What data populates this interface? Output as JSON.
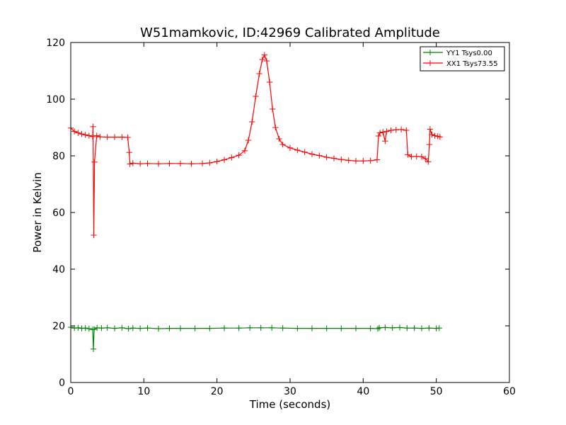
{
  "chart_data": {
    "type": "line",
    "title": "W51mamkovic, ID:42969 Calibrated Amplitude",
    "xlabel": "Time (seconds)",
    "ylabel": "Power in Kelvin",
    "xlim": [
      0,
      60
    ],
    "ylim": [
      0,
      120
    ],
    "x_ticks": [
      0,
      10,
      20,
      30,
      40,
      50,
      60
    ],
    "y_ticks": [
      0,
      20,
      40,
      60,
      80,
      100,
      120
    ],
    "grid": false,
    "legend_placement": "top-right",
    "series": [
      {
        "name": "YY1 Tsys0.00",
        "color": "#008000",
        "marker": "plus",
        "points": [
          [
            0.0,
            19.5
          ],
          [
            0.5,
            19.2
          ],
          [
            1.0,
            19.3
          ],
          [
            1.5,
            19.1
          ],
          [
            2.0,
            19.2
          ],
          [
            2.5,
            19.0
          ],
          [
            3.0,
            18.7
          ],
          [
            3.1,
            11.8
          ],
          [
            3.2,
            18.8
          ],
          [
            3.6,
            19.3
          ],
          [
            4.2,
            19.2
          ],
          [
            5.0,
            19.3
          ],
          [
            6.0,
            19.1
          ],
          [
            7.0,
            19.3
          ],
          [
            7.9,
            19.0
          ],
          [
            8.5,
            19.2
          ],
          [
            9.5,
            19.1
          ],
          [
            10.5,
            19.2
          ],
          [
            12.0,
            19.0
          ],
          [
            13.5,
            19.1
          ],
          [
            15.0,
            19.1
          ],
          [
            17.0,
            19.1
          ],
          [
            19.0,
            19.1
          ],
          [
            21.0,
            19.2
          ],
          [
            23.0,
            19.2
          ],
          [
            24.5,
            19.3
          ],
          [
            26.0,
            19.3
          ],
          [
            27.5,
            19.3
          ],
          [
            29.0,
            19.2
          ],
          [
            31.0,
            19.1
          ],
          [
            33.0,
            19.1
          ],
          [
            35.0,
            19.1
          ],
          [
            37.0,
            19.1
          ],
          [
            39.0,
            19.1
          ],
          [
            41.0,
            19.1
          ],
          [
            42.0,
            19.0
          ],
          [
            42.2,
            19.3
          ],
          [
            43.0,
            19.4
          ],
          [
            44.0,
            19.3
          ],
          [
            45.0,
            19.4
          ],
          [
            46.0,
            19.2
          ],
          [
            47.0,
            19.2
          ],
          [
            48.0,
            19.1
          ],
          [
            49.0,
            19.2
          ],
          [
            50.0,
            19.1
          ],
          [
            50.4,
            19.2
          ]
        ]
      },
      {
        "name": "XX1 Tsys73.55",
        "color": "#ff0000",
        "marker": "plus",
        "points": [
          [
            0.0,
            89.8
          ],
          [
            0.5,
            88.6
          ],
          [
            1.0,
            88.1
          ],
          [
            1.5,
            87.7
          ],
          [
            2.0,
            87.4
          ],
          [
            2.5,
            87.1
          ],
          [
            3.0,
            86.8
          ],
          [
            3.05,
            90.3
          ],
          [
            3.15,
            52.0
          ],
          [
            3.25,
            77.8
          ],
          [
            3.55,
            87.1
          ],
          [
            4.0,
            86.7
          ],
          [
            5.0,
            86.6
          ],
          [
            6.0,
            86.6
          ],
          [
            7.0,
            86.6
          ],
          [
            7.8,
            86.5
          ],
          [
            8.0,
            81.2
          ],
          [
            8.1,
            77.1
          ],
          [
            8.5,
            77.4
          ],
          [
            9.5,
            77.2
          ],
          [
            10.5,
            77.3
          ],
          [
            12.0,
            77.2
          ],
          [
            13.5,
            77.3
          ],
          [
            15.0,
            77.3
          ],
          [
            16.5,
            77.2
          ],
          [
            18.0,
            77.3
          ],
          [
            19.0,
            77.5
          ],
          [
            20.0,
            78.0
          ],
          [
            21.0,
            78.6
          ],
          [
            22.0,
            79.4
          ],
          [
            23.0,
            80.2
          ],
          [
            23.8,
            81.8
          ],
          [
            24.3,
            85.5
          ],
          [
            24.8,
            92.0
          ],
          [
            25.3,
            101.0
          ],
          [
            25.8,
            109.0
          ],
          [
            26.2,
            114.0
          ],
          [
            26.5,
            115.6
          ],
          [
            26.8,
            113.5
          ],
          [
            27.2,
            106.0
          ],
          [
            27.6,
            96.5
          ],
          [
            28.0,
            90.0
          ],
          [
            28.5,
            86.0
          ],
          [
            29.0,
            84.0
          ],
          [
            30.0,
            82.8
          ],
          [
            31.0,
            82.0
          ],
          [
            32.0,
            81.3
          ],
          [
            33.0,
            80.6
          ],
          [
            34.0,
            80.1
          ],
          [
            35.0,
            79.5
          ],
          [
            36.0,
            79.1
          ],
          [
            37.0,
            78.7
          ],
          [
            38.0,
            78.4
          ],
          [
            39.0,
            78.2
          ],
          [
            40.0,
            78.2
          ],
          [
            41.0,
            78.3
          ],
          [
            41.9,
            78.6
          ],
          [
            42.1,
            87.0
          ],
          [
            42.3,
            88.1
          ],
          [
            42.7,
            88.4
          ],
          [
            43.0,
            85.2
          ],
          [
            43.2,
            88.6
          ],
          [
            43.8,
            89.0
          ],
          [
            44.5,
            89.2
          ],
          [
            45.2,
            89.3
          ],
          [
            45.9,
            89.0
          ],
          [
            46.1,
            80.4
          ],
          [
            46.6,
            79.7
          ],
          [
            47.3,
            79.8
          ],
          [
            48.0,
            79.7
          ],
          [
            48.5,
            79.0
          ],
          [
            48.9,
            77.9
          ],
          [
            49.05,
            84.0
          ],
          [
            49.15,
            89.4
          ],
          [
            49.4,
            87.5
          ],
          [
            49.8,
            87.1
          ],
          [
            50.2,
            86.9
          ],
          [
            50.5,
            86.7
          ]
        ]
      }
    ]
  }
}
